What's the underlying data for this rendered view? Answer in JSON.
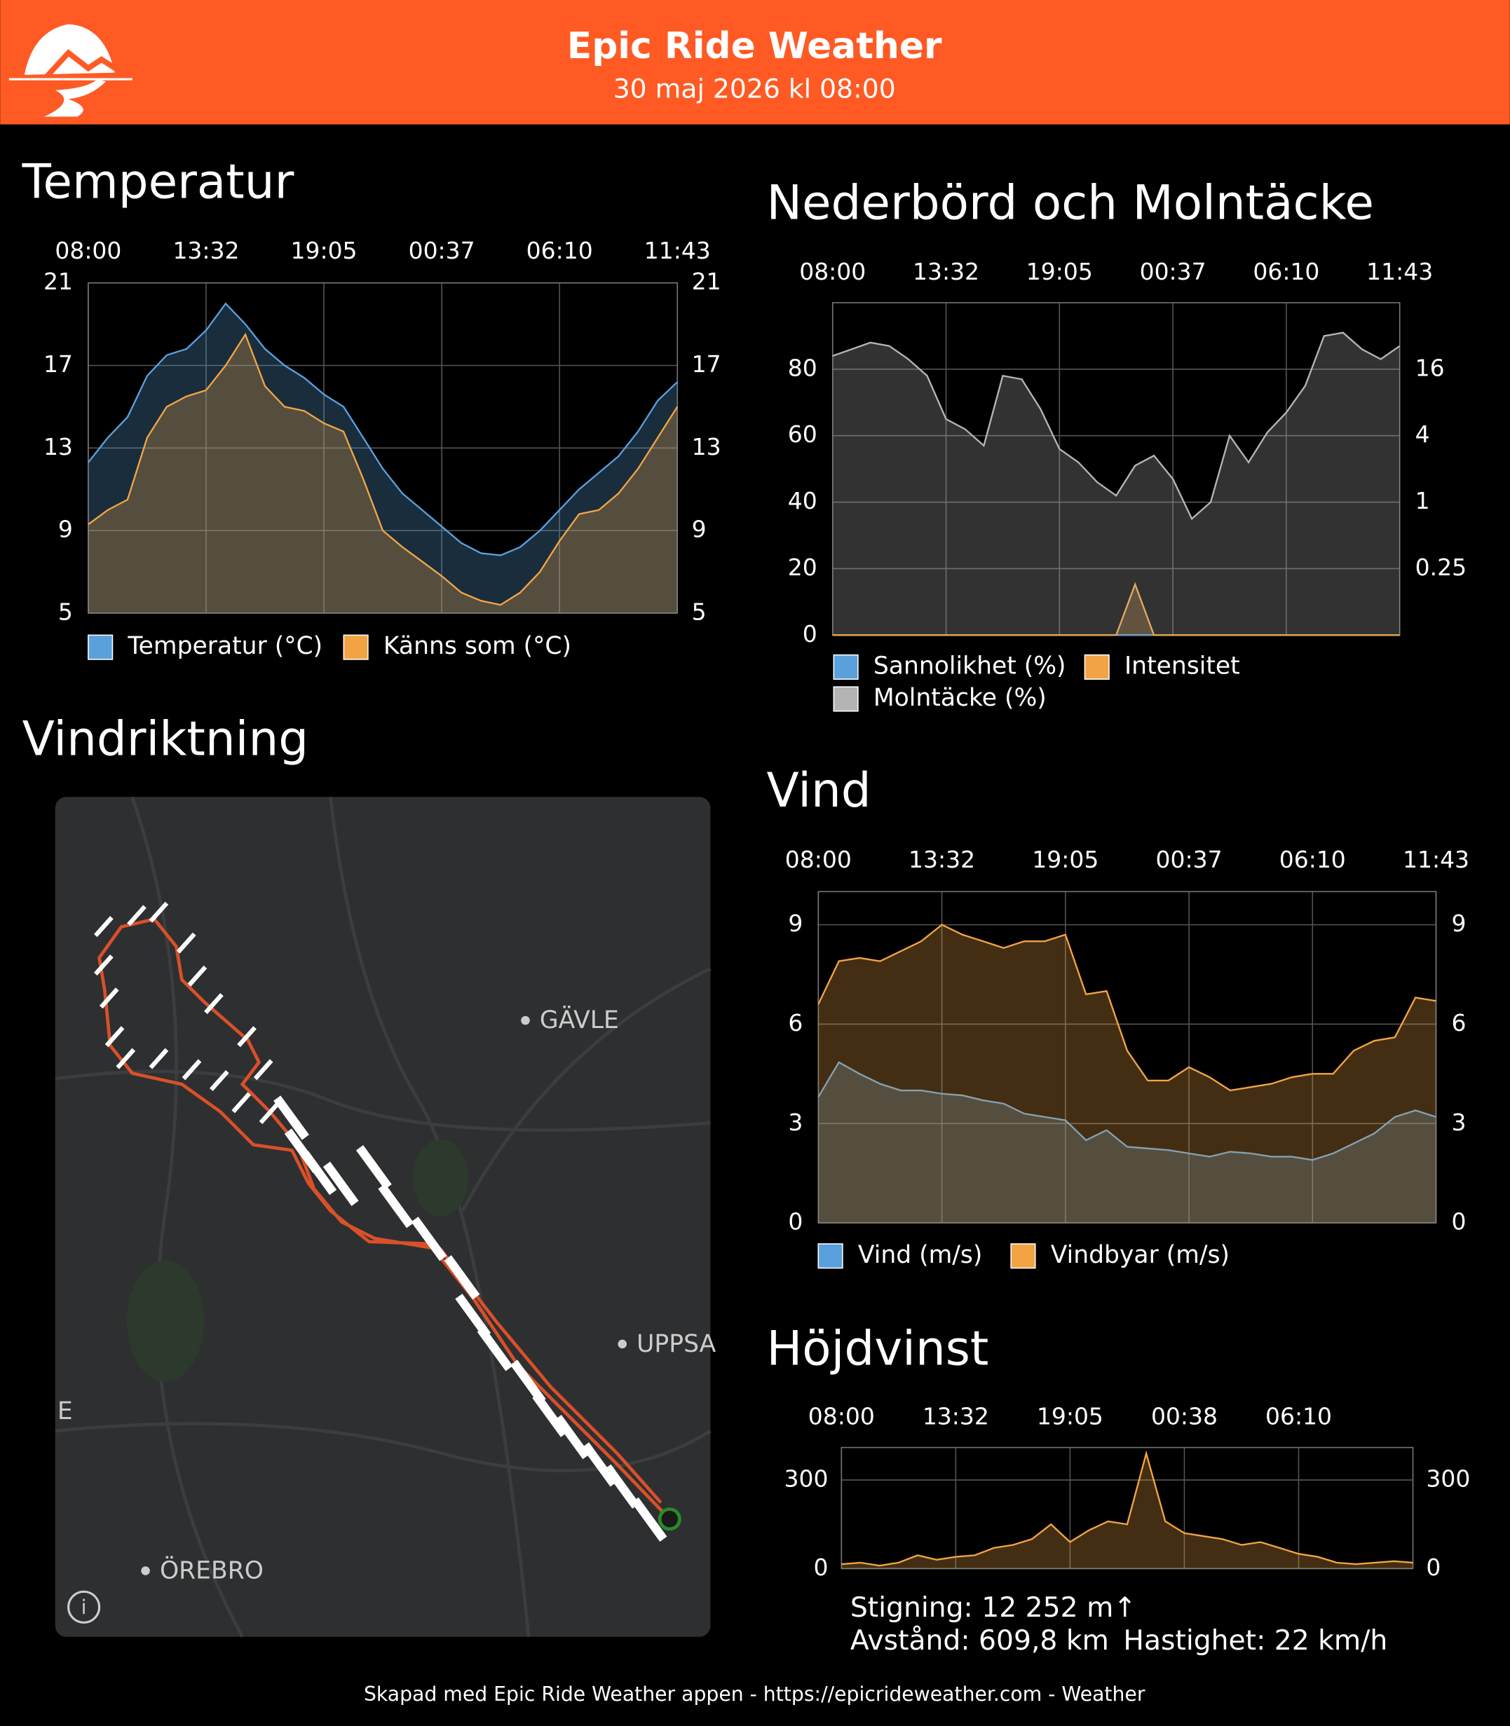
{
  "header": {
    "title": "Epic Ride Weather",
    "subtitle": "30 maj 2026 kl 08:00"
  },
  "chart_data": [
    {
      "type": "area",
      "title": "Temperatur",
      "categories": [
        "08:00",
        null,
        null,
        null,
        null,
        null,
        "13:32",
        null,
        null,
        null,
        null,
        null,
        "19:05",
        null,
        null,
        null,
        null,
        null,
        "00:37",
        null,
        null,
        null,
        null,
        null,
        "06:10",
        null,
        null,
        null,
        null,
        null,
        "11:43"
      ],
      "series": [
        {
          "name": "Temperatur (°C)",
          "color": "#5aa0dc",
          "values": [
            12.3,
            13.5,
            14.5,
            16.5,
            17.5,
            17.8,
            18.7,
            20.0,
            19.0,
            17.8,
            17.0,
            16.4,
            15.6,
            15.0,
            13.5,
            12.0,
            10.8,
            10.0,
            9.2,
            8.4,
            7.9,
            7.8,
            8.2,
            9.0,
            10.0,
            11.0,
            11.8,
            12.6,
            13.8,
            15.3,
            16.2
          ]
        },
        {
          "name": "Känns som (°C)",
          "color": "#f2a444",
          "values": [
            9.3,
            10.0,
            10.5,
            13.5,
            15.0,
            15.5,
            15.8,
            17.0,
            18.5,
            16.0,
            15.0,
            14.8,
            14.2,
            13.8,
            11.5,
            9.0,
            8.2,
            7.5,
            6.8,
            6.0,
            5.6,
            5.4,
            6.0,
            7.0,
            8.5,
            9.8,
            10.0,
            10.8,
            12.0,
            13.5,
            15.0
          ]
        }
      ],
      "ylim": [
        5,
        21
      ],
      "yticks": [
        5,
        9,
        13,
        17,
        21
      ],
      "grid": true
    },
    {
      "type": "area",
      "title": "Nederbörd och Molntäcke",
      "categories": [
        "08:00",
        null,
        null,
        null,
        null,
        null,
        "13:32",
        null,
        null,
        null,
        null,
        null,
        "19:05",
        null,
        null,
        null,
        null,
        null,
        "00:37",
        null,
        null,
        null,
        null,
        null,
        "06:10",
        null,
        null,
        null,
        null,
        null,
        "11:43"
      ],
      "series": [
        {
          "name": "Sannolikhet (%)",
          "color": "#5aa0dc",
          "values": [
            0,
            0,
            0,
            0,
            0,
            0,
            0,
            0,
            0,
            0,
            0,
            0,
            0,
            0,
            0,
            0,
            0,
            0,
            0,
            0,
            0,
            0,
            0,
            0,
            0,
            0,
            0,
            0,
            0,
            0,
            0
          ]
        },
        {
          "name": "Intensitet",
          "color": "#f2a444",
          "axis": "y2",
          "values": [
            0,
            0,
            0,
            0,
            0,
            0,
            0,
            0,
            0,
            0,
            0,
            0,
            0,
            0,
            0,
            0,
            0.18,
            0,
            0,
            0,
            0,
            0,
            0,
            0,
            0,
            0,
            0,
            0,
            0,
            0,
            0
          ]
        },
        {
          "name": "Molntäcke (%)",
          "color": "#b4b4b4",
          "values": [
            84,
            86,
            88,
            87,
            83,
            78,
            65,
            62,
            57,
            78,
            77,
            68,
            56,
            52,
            46,
            42,
            51,
            54,
            47,
            35,
            40,
            60,
            52,
            61,
            67,
            75,
            90,
            91,
            86,
            83,
            87
          ]
        }
      ],
      "ylim": [
        0,
        100
      ],
      "yticks": [
        0,
        20,
        40,
        60,
        80
      ],
      "y2lim": [
        0.0625,
        64
      ],
      "y2ticks": [
        0.25,
        1,
        4,
        16
      ],
      "y2log": true,
      "grid": true
    },
    {
      "type": "area",
      "title": "Vind",
      "categories": [
        "08:00",
        null,
        null,
        null,
        null,
        null,
        "13:32",
        null,
        null,
        null,
        null,
        null,
        "19:05",
        null,
        null,
        null,
        null,
        null,
        "00:37",
        null,
        null,
        null,
        null,
        null,
        "06:10",
        null,
        null,
        null,
        null,
        null,
        "11:43"
      ],
      "series": [
        {
          "name": "Vind (m/s)",
          "color": "#5aa0dc",
          "values": [
            3.8,
            4.85,
            4.5,
            4.2,
            4.0,
            4.0,
            3.9,
            3.85,
            3.7,
            3.6,
            3.3,
            3.2,
            3.1,
            2.5,
            2.8,
            2.3,
            2.25,
            2.2,
            2.1,
            2.0,
            2.15,
            2.1,
            2.0,
            2.0,
            1.9,
            2.1,
            2.4,
            2.7,
            3.2,
            3.4,
            3.2
          ]
        },
        {
          "name": "Vindbyar (m/s)",
          "color": "#f2a444",
          "values": [
            6.6,
            7.9,
            8.0,
            7.9,
            8.2,
            8.5,
            9.0,
            8.7,
            8.5,
            8.3,
            8.5,
            8.5,
            8.7,
            6.9,
            7.0,
            5.2,
            4.3,
            4.3,
            4.7,
            4.4,
            4.0,
            4.1,
            4.2,
            4.4,
            4.5,
            4.5,
            5.2,
            5.5,
            5.6,
            6.8,
            6.7
          ]
        }
      ],
      "ylim": [
        0,
        10
      ],
      "yticks": [
        0,
        3,
        6,
        9
      ],
      "grid": true
    },
    {
      "type": "area",
      "title": "Höjdvinst",
      "categories": [
        "08:00",
        null,
        null,
        null,
        null,
        null,
        "13:32",
        null,
        null,
        null,
        null,
        null,
        "19:05",
        null,
        null,
        null,
        null,
        null,
        "00:38",
        null,
        null,
        null,
        null,
        null,
        "06:10",
        null,
        null,
        null,
        null,
        null,
        null
      ],
      "series": [
        {
          "color": "#f2a444",
          "values": [
            15,
            20,
            10,
            20,
            45,
            30,
            40,
            45,
            70,
            80,
            100,
            150,
            90,
            130,
            160,
            150,
            390,
            160,
            120,
            110,
            100,
            80,
            90,
            70,
            50,
            40,
            20,
            15,
            20,
            25,
            20
          ]
        }
      ],
      "ylim": [
        0,
        410
      ],
      "yticks": [
        0,
        300
      ],
      "grid": true
    }
  ],
  "map": {
    "title": "Vindriktning",
    "labels": [
      "GÄVLE",
      "UPPSA",
      "E",
      "ÖREBRO"
    ]
  },
  "stats": {
    "climb": "Stigning: 12 252 m↑",
    "distance": "Avstånd: 609,8 km",
    "speed": "Hastighet: 22 km/h"
  },
  "footer": "Skapad med Epic Ride Weather appen - https://epicrideweather.com -  Weather"
}
